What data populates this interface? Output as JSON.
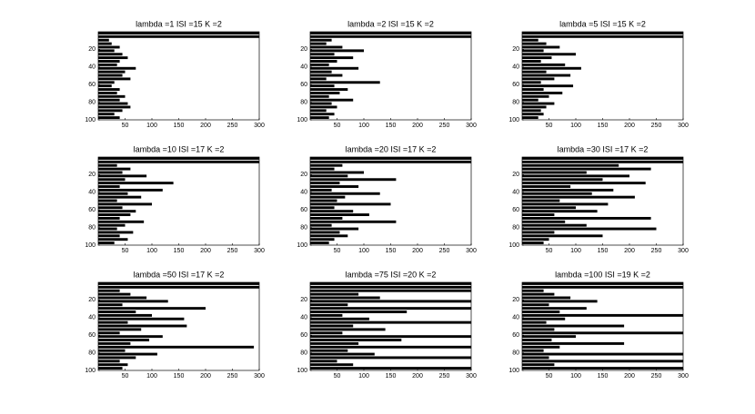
{
  "chart_data": [
    {
      "type": "bar",
      "orientation": "horizontal",
      "title": "lambda =1 ISI =15 K =2",
      "color": "#000000",
      "xlim": [
        0,
        300
      ],
      "xticks": [
        50,
        100,
        150,
        200,
        250,
        300
      ],
      "ylim": [
        0,
        100
      ],
      "yticks": [
        20,
        40,
        60,
        80,
        100
      ],
      "values": [
        300,
        300,
        20,
        25,
        40,
        30,
        45,
        55,
        40,
        35,
        70,
        50,
        45,
        60,
        30,
        25,
        40,
        35,
        50,
        40,
        55,
        60,
        45,
        30,
        40
      ]
    },
    {
      "type": "bar",
      "orientation": "horizontal",
      "title": "lambda =2 ISI =15 K =2",
      "color": "#000000",
      "xlim": [
        0,
        300
      ],
      "xticks": [
        50,
        100,
        150,
        200,
        250,
        300
      ],
      "ylim": [
        0,
        100
      ],
      "yticks": [
        20,
        40,
        60,
        80,
        100
      ],
      "values": [
        300,
        300,
        40,
        30,
        60,
        100,
        45,
        80,
        50,
        35,
        90,
        40,
        60,
        30,
        130,
        45,
        70,
        55,
        35,
        80,
        40,
        50,
        30,
        45,
        35
      ]
    },
    {
      "type": "bar",
      "orientation": "horizontal",
      "title": "lambda =5 ISI =15 K =2",
      "color": "#000000",
      "xlim": [
        0,
        300
      ],
      "xticks": [
        50,
        100,
        150,
        200,
        250,
        300
      ],
      "ylim": [
        0,
        100
      ],
      "yticks": [
        20,
        40,
        60,
        80,
        100
      ],
      "values": [
        300,
        300,
        30,
        45,
        70,
        40,
        100,
        55,
        35,
        80,
        110,
        45,
        90,
        60,
        35,
        95,
        40,
        75,
        50,
        30,
        60,
        45,
        35,
        40,
        30
      ]
    },
    {
      "type": "bar",
      "orientation": "horizontal",
      "title": "lambda =10 ISI =17 K =2",
      "color": "#000000",
      "xlim": [
        0,
        300
      ],
      "xticks": [
        50,
        100,
        150,
        200,
        250,
        300
      ],
      "ylim": [
        0,
        100
      ],
      "yticks": [
        20,
        40,
        60,
        80,
        100
      ],
      "values": [
        300,
        300,
        35,
        60,
        45,
        90,
        50,
        140,
        40,
        120,
        55,
        80,
        35,
        100,
        45,
        70,
        60,
        40,
        85,
        50,
        35,
        65,
        40,
        55,
        30
      ]
    },
    {
      "type": "bar",
      "orientation": "horizontal",
      "title": "lambda =20 ISI =17 K =2",
      "color": "#000000",
      "xlim": [
        0,
        300
      ],
      "xticks": [
        50,
        100,
        150,
        200,
        250,
        300
      ],
      "ylim": [
        0,
        100
      ],
      "yticks": [
        20,
        40,
        60,
        80,
        100
      ],
      "values": [
        300,
        300,
        60,
        45,
        100,
        70,
        160,
        55,
        90,
        40,
        130,
        65,
        50,
        150,
        45,
        80,
        110,
        60,
        160,
        40,
        90,
        55,
        70,
        45,
        35
      ]
    },
    {
      "type": "bar",
      "orientation": "horizontal",
      "title": "lambda =30 ISI =17 K =2",
      "color": "#000000",
      "xlim": [
        0,
        300
      ],
      "xticks": [
        50,
        100,
        150,
        200,
        250,
        300
      ],
      "ylim": [
        0,
        100
      ],
      "yticks": [
        20,
        40,
        60,
        80,
        100
      ],
      "values": [
        300,
        300,
        180,
        240,
        120,
        200,
        150,
        230,
        90,
        170,
        130,
        210,
        70,
        160,
        100,
        140,
        60,
        240,
        80,
        120,
        250,
        60,
        150,
        50,
        40
      ]
    },
    {
      "type": "bar",
      "orientation": "horizontal",
      "title": "lambda =50 ISI =17 K =2",
      "color": "#000000",
      "xlim": [
        0,
        300
      ],
      "xticks": [
        50,
        100,
        150,
        200,
        250,
        300
      ],
      "ylim": [
        0,
        100
      ],
      "yticks": [
        20,
        40,
        60,
        80,
        100
      ],
      "values": [
        300,
        300,
        40,
        60,
        90,
        130,
        45,
        200,
        70,
        100,
        160,
        55,
        165,
        80,
        40,
        120,
        95,
        60,
        290,
        50,
        110,
        70,
        40,
        55,
        45
      ]
    },
    {
      "type": "bar",
      "orientation": "horizontal",
      "title": "lambda =75 ISI =20 K =2",
      "color": "#000000",
      "xlim": [
        0,
        300
      ],
      "xticks": [
        50,
        100,
        150,
        200,
        250,
        300
      ],
      "ylim": [
        0,
        100
      ],
      "yticks": [
        20,
        40,
        60,
        80,
        100
      ],
      "values": [
        300,
        300,
        300,
        90,
        130,
        300,
        70,
        300,
        180,
        60,
        110,
        300,
        80,
        140,
        60,
        300,
        170,
        90,
        300,
        70,
        120,
        300,
        50,
        80,
        300
      ]
    },
    {
      "type": "bar",
      "orientation": "horizontal",
      "title": "lambda =100 ISI =19 K =2",
      "color": "#000000",
      "xlim": [
        0,
        300
      ],
      "xticks": [
        50,
        100,
        150,
        200,
        250,
        300
      ],
      "ylim": [
        0,
        100
      ],
      "yticks": [
        20,
        40,
        60,
        80,
        100
      ],
      "values": [
        300,
        300,
        40,
        60,
        90,
        140,
        50,
        120,
        70,
        300,
        80,
        45,
        190,
        60,
        300,
        100,
        55,
        190,
        70,
        40,
        300,
        50,
        300,
        60,
        300
      ]
    }
  ]
}
